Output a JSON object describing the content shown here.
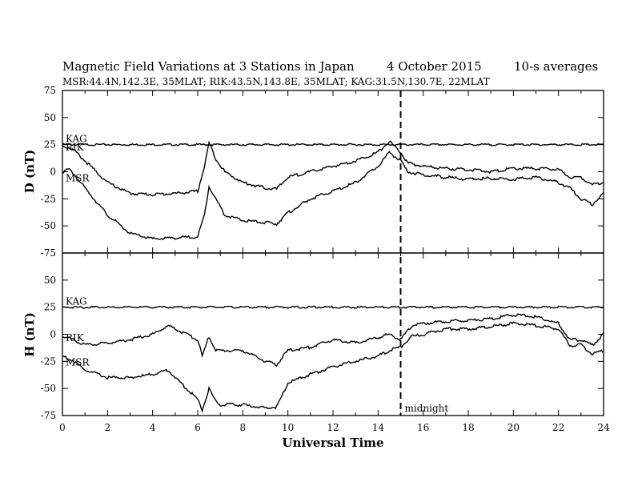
{
  "header": {
    "title": "Magnetic Field Variations at 3 Stations in Japan",
    "date": "4   October 2015",
    "avg": "10-s averages",
    "stations": "MSR:44.4N,142.3E, 35MLAT;  RIK:43.5N,143.8E, 35MLAT;  KAG:31.5N,130.7E, 22MLAT"
  },
  "chart_data": [
    {
      "type": "line",
      "panel": "D",
      "ylabel": "D (nT)",
      "xlabel": "",
      "xlim": [
        0,
        24
      ],
      "ylim": [
        -75,
        75
      ],
      "yticks": [
        75,
        50,
        25,
        0,
        -25,
        -50,
        -75
      ],
      "grid": false,
      "series": [
        {
          "name": "KAG",
          "x": [
            0,
            2,
            4,
            6,
            8,
            10,
            12,
            14,
            16,
            18,
            20,
            22,
            24
          ],
          "values": [
            25,
            25,
            25,
            25,
            25,
            25,
            25,
            25,
            25,
            25,
            25,
            25,
            25
          ]
        },
        {
          "name": "RIK",
          "x": [
            0,
            0.3,
            0.5,
            1,
            2,
            3,
            4,
            5,
            6,
            6.3,
            6.5,
            6.8,
            7.2,
            8,
            9,
            9.5,
            10,
            11,
            12,
            13,
            14,
            14.5,
            15,
            15.3,
            16,
            17,
            18,
            19,
            20,
            21,
            22,
            22.5,
            23,
            23.5,
            24
          ],
          "values": [
            24,
            22,
            20,
            10,
            -10,
            -20,
            -21,
            -20,
            -18,
            5,
            27,
            12,
            0,
            -10,
            -15,
            -16,
            -5,
            0,
            5,
            10,
            18,
            28,
            18,
            8,
            5,
            3,
            2,
            0,
            3,
            3,
            2,
            -5,
            -5,
            -12,
            -10
          ]
        },
        {
          "name": "MSR",
          "x": [
            0,
            0.3,
            0.5,
            1,
            2,
            3,
            4,
            5,
            6,
            6.3,
            6.5,
            6.8,
            7.2,
            8,
            9,
            9.5,
            10,
            11,
            12,
            13,
            14,
            14.5,
            15,
            15.3,
            16,
            17,
            18,
            19,
            20,
            21,
            22,
            22.5,
            23,
            23.5,
            24
          ],
          "values": [
            0,
            2,
            -2,
            -15,
            -40,
            -57,
            -62,
            -61,
            -60,
            -40,
            -13,
            -25,
            -40,
            -45,
            -47,
            -48,
            -38,
            -25,
            -18,
            -10,
            5,
            18,
            10,
            0,
            -3,
            -5,
            -7,
            -6,
            -7,
            -5,
            -10,
            -15,
            -25,
            -30,
            -20
          ]
        }
      ]
    },
    {
      "type": "line",
      "panel": "H",
      "ylabel": "H (nT)",
      "xlabel": "Universal Time",
      "xlim": [
        0,
        24
      ],
      "ylim": [
        -75,
        75
      ],
      "yticks": [
        75,
        50,
        25,
        0,
        -25,
        -50,
        -75
      ],
      "xticks": [
        0,
        2,
        4,
        6,
        8,
        10,
        12,
        14,
        16,
        18,
        20,
        22,
        24
      ],
      "grid": false,
      "series": [
        {
          "name": "KAG",
          "x": [
            0,
            2,
            4,
            6,
            8,
            10,
            12,
            14,
            16,
            18,
            20,
            22,
            24
          ],
          "values": [
            25,
            25,
            25,
            25,
            25,
            25,
            25,
            25,
            25,
            25,
            25,
            25,
            25
          ]
        },
        {
          "name": "RIK",
          "x": [
            0,
            0.5,
            1,
            2,
            3,
            4,
            4.7,
            5,
            6,
            6.2,
            6.5,
            6.8,
            7,
            8,
            9,
            9.5,
            10,
            11,
            12,
            13,
            14,
            14.5,
            15,
            15.5,
            16,
            17,
            18,
            19,
            20,
            21,
            22,
            22.5,
            23,
            23.5,
            24
          ],
          "values": [
            -2,
            -5,
            -10,
            -8,
            -5,
            0,
            8,
            5,
            -5,
            -20,
            -2,
            -15,
            -15,
            -15,
            -25,
            -28,
            -15,
            -12,
            -5,
            -8,
            -3,
            0,
            -5,
            8,
            10,
            12,
            13,
            14,
            18,
            16,
            10,
            -5,
            -5,
            -10,
            0
          ]
        },
        {
          "name": "MSR",
          "x": [
            0,
            0.5,
            1,
            2,
            3,
            4,
            4.7,
            5,
            6,
            6.2,
            6.5,
            6.8,
            7,
            8,
            9,
            9.5,
            10,
            11,
            12,
            13,
            14,
            14.5,
            15,
            15.5,
            16,
            17,
            18,
            19,
            20,
            21,
            22,
            22.5,
            23,
            23.5,
            24
          ],
          "values": [
            -20,
            -25,
            -33,
            -40,
            -40,
            -37,
            -33,
            -40,
            -60,
            -70,
            -50,
            -62,
            -65,
            -65,
            -68,
            -67,
            -45,
            -37,
            -30,
            -25,
            -20,
            -15,
            -12,
            -2,
            0,
            5,
            5,
            7,
            10,
            8,
            5,
            -10,
            -10,
            -18,
            -15
          ]
        }
      ]
    }
  ],
  "xaxis_label": "Universal Time",
  "marker": {
    "x": 15,
    "label": "midnight"
  },
  "colors": {
    "line": "#000000",
    "background": "#ffffff"
  }
}
